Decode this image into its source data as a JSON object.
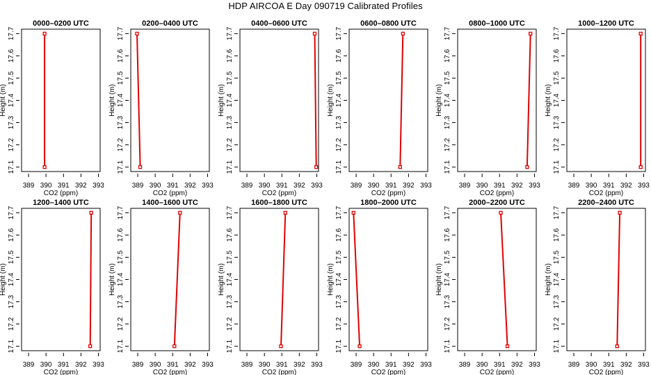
{
  "figure": {
    "title": "HDP AIRCOA E  Day 090719  Calibrated Profiles"
  },
  "chart_data": [
    {
      "type": "line",
      "title": "0000–0200 UTC",
      "xlabel": "CO2 (ppm)",
      "ylabel": "Height (m)",
      "xlim": [
        388.6,
        393.1
      ],
      "ylim": [
        17.08,
        17.72
      ],
      "xticks": [
        389,
        390,
        391,
        392,
        393
      ],
      "yticks": [
        17.1,
        17.2,
        17.3,
        17.4,
        17.5,
        17.6,
        17.7
      ],
      "x": [
        389.92,
        389.92
      ],
      "y": [
        17.1,
        17.7
      ],
      "color": "#e00000"
    },
    {
      "type": "line",
      "title": "0200–0400 UTC",
      "xlabel": "CO2 (ppm)",
      "ylabel": "Height (m)",
      "xlim": [
        388.6,
        393.1
      ],
      "ylim": [
        17.08,
        17.72
      ],
      "xticks": [
        389,
        390,
        391,
        392,
        393
      ],
      "yticks": [
        17.1,
        17.2,
        17.3,
        17.4,
        17.5,
        17.6,
        17.7
      ],
      "x": [
        389.14,
        388.96
      ],
      "y": [
        17.1,
        17.7
      ],
      "color": "#e00000"
    },
    {
      "type": "line",
      "title": "0400–0600 UTC",
      "xlabel": "CO2 (ppm)",
      "ylabel": "Height (m)",
      "xlim": [
        388.6,
        393.1
      ],
      "ylim": [
        17.08,
        17.72
      ],
      "xticks": [
        389,
        390,
        391,
        392,
        393
      ],
      "yticks": [
        17.1,
        17.2,
        17.3,
        17.4,
        17.5,
        17.6,
        17.7
      ],
      "x": [
        392.97,
        392.88
      ],
      "y": [
        17.1,
        17.7
      ],
      "color": "#e00000"
    },
    {
      "type": "line",
      "title": "0600–0800 UTC",
      "xlabel": "CO2 (ppm)",
      "ylabel": "Height (m)",
      "xlim": [
        388.6,
        393.1
      ],
      "ylim": [
        17.08,
        17.72
      ],
      "xticks": [
        389,
        390,
        391,
        392,
        393
      ],
      "yticks": [
        17.1,
        17.2,
        17.3,
        17.4,
        17.5,
        17.6,
        17.7
      ],
      "x": [
        391.52,
        391.68
      ],
      "y": [
        17.1,
        17.7
      ],
      "color": "#e00000"
    },
    {
      "type": "line",
      "title": "0800–1000 UTC",
      "xlabel": "CO2 (ppm)",
      "ylabel": "Height (m)",
      "xlim": [
        388.6,
        393.1
      ],
      "ylim": [
        17.08,
        17.72
      ],
      "xticks": [
        389,
        390,
        391,
        392,
        393
      ],
      "yticks": [
        17.1,
        17.2,
        17.3,
        17.4,
        17.5,
        17.6,
        17.7
      ],
      "x": [
        392.58,
        392.77
      ],
      "y": [
        17.1,
        17.7
      ],
      "color": "#e00000"
    },
    {
      "type": "line",
      "title": "1000–1200 UTC",
      "xlabel": "CO2 (ppm)",
      "ylabel": "Height (m)",
      "xlim": [
        388.6,
        393.1
      ],
      "ylim": [
        17.08,
        17.72
      ],
      "xticks": [
        389,
        390,
        391,
        392,
        393
      ],
      "yticks": [
        17.1,
        17.2,
        17.3,
        17.4,
        17.5,
        17.6,
        17.7
      ],
      "x": [
        392.83,
        392.83
      ],
      "y": [
        17.1,
        17.7
      ],
      "color": "#e00000"
    },
    {
      "type": "line",
      "title": "1200–1400 UTC",
      "xlabel": "CO2 (ppm)",
      "ylabel": "Height (m)",
      "xlim": [
        388.6,
        393.1
      ],
      "ylim": [
        17.08,
        17.72
      ],
      "xticks": [
        389,
        390,
        391,
        392,
        393
      ],
      "yticks": [
        17.1,
        17.2,
        17.3,
        17.4,
        17.5,
        17.6,
        17.7
      ],
      "x": [
        392.53,
        392.59
      ],
      "y": [
        17.1,
        17.7
      ],
      "color": "#e00000"
    },
    {
      "type": "line",
      "title": "1400–1600 UTC",
      "xlabel": "CO2 (ppm)",
      "ylabel": "Height (m)",
      "xlim": [
        388.6,
        393.1
      ],
      "ylim": [
        17.08,
        17.72
      ],
      "xticks": [
        389,
        390,
        391,
        392,
        393
      ],
      "yticks": [
        17.1,
        17.2,
        17.3,
        17.4,
        17.5,
        17.6,
        17.7
      ],
      "x": [
        391.1,
        391.42
      ],
      "y": [
        17.1,
        17.7
      ],
      "color": "#e00000"
    },
    {
      "type": "line",
      "title": "1600–1800 UTC",
      "xlabel": "CO2 (ppm)",
      "ylabel": "Height (m)",
      "xlim": [
        388.6,
        393.1
      ],
      "ylim": [
        17.08,
        17.72
      ],
      "xticks": [
        389,
        390,
        391,
        392,
        393
      ],
      "yticks": [
        17.1,
        17.2,
        17.3,
        17.4,
        17.5,
        17.6,
        17.7
      ],
      "x": [
        390.95,
        391.2
      ],
      "y": [
        17.1,
        17.7
      ],
      "color": "#e00000"
    },
    {
      "type": "line",
      "title": "1800–2000 UTC",
      "xlabel": "CO2 (ppm)",
      "ylabel": "Height (m)",
      "xlim": [
        388.6,
        393.1
      ],
      "ylim": [
        17.08,
        17.72
      ],
      "xticks": [
        389,
        390,
        391,
        392,
        393
      ],
      "yticks": [
        17.1,
        17.2,
        17.3,
        17.4,
        17.5,
        17.6,
        17.7
      ],
      "x": [
        389.2,
        388.85
      ],
      "y": [
        17.1,
        17.7
      ],
      "color": "#e00000"
    },
    {
      "type": "line",
      "title": "2000–2200 UTC",
      "xlabel": "CO2 (ppm)",
      "ylabel": "Height (m)",
      "xlim": [
        388.6,
        393.1
      ],
      "ylim": [
        17.08,
        17.72
      ],
      "xticks": [
        389,
        390,
        391,
        392,
        393
      ],
      "yticks": [
        17.1,
        17.2,
        17.3,
        17.4,
        17.5,
        17.6,
        17.7
      ],
      "x": [
        391.45,
        391.07
      ],
      "y": [
        17.1,
        17.7
      ],
      "color": "#e00000"
    },
    {
      "type": "line",
      "title": "2200–2400 UTC",
      "xlabel": "CO2 (ppm)",
      "ylabel": "Height (m)",
      "xlim": [
        388.6,
        393.1
      ],
      "ylim": [
        17.08,
        17.72
      ],
      "xticks": [
        389,
        390,
        391,
        392,
        393
      ],
      "yticks": [
        17.1,
        17.2,
        17.3,
        17.4,
        17.5,
        17.6,
        17.7
      ],
      "x": [
        391.48,
        391.63
      ],
      "y": [
        17.1,
        17.7
      ],
      "color": "#e00000"
    }
  ]
}
